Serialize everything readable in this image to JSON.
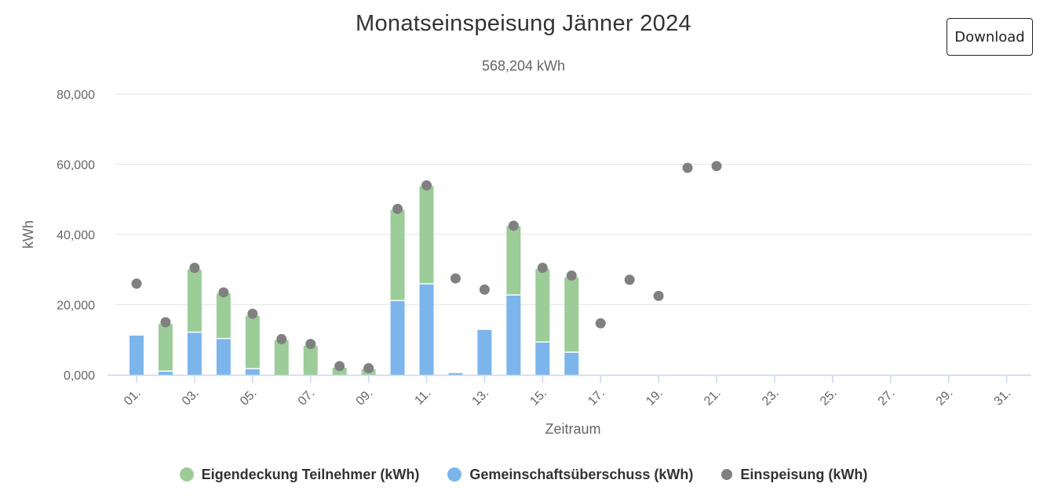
{
  "header": {
    "title": "Monatseinspeisung Jänner 2024",
    "subtitle": "568,204 kWh",
    "download_label": "Download"
  },
  "chart_data": {
    "type": "bar",
    "stacked": true,
    "title": "Monatseinspeisung Jänner 2024",
    "subtitle": "568,204 kWh",
    "xlabel": "Zeitraum",
    "ylabel": "kWh",
    "ylim": [
      0,
      80000
    ],
    "y_ticks": [
      0,
      20000,
      40000,
      60000,
      80000
    ],
    "y_tick_labels": [
      "0,000",
      "20,000",
      "40,000",
      "60,000",
      "80,000"
    ],
    "x": [
      1,
      2,
      3,
      4,
      5,
      6,
      7,
      8,
      9,
      10,
      11,
      12,
      13,
      14,
      15,
      16,
      17,
      18,
      19,
      20,
      21,
      22,
      23,
      24,
      25,
      26,
      27,
      28,
      29,
      30,
      31
    ],
    "x_tick_labels": [
      "01.",
      "03.",
      "05.",
      "07.",
      "09.",
      "11.",
      "13.",
      "15.",
      "17.",
      "19.",
      "21.",
      "23.",
      "25.",
      "27.",
      "29.",
      "31."
    ],
    "grid": true,
    "legend_position": "bottom",
    "series": [
      {
        "name": "Eigendeckung Teilnehmer (kWh)",
        "kind": "bar",
        "color": "#9ccd98",
        "values": [
          0,
          13600,
          18000,
          13000,
          15200,
          9900,
          8300,
          2000,
          1600,
          26000,
          28000,
          0,
          0,
          19800,
          21000,
          21500,
          null,
          null,
          null,
          null,
          null,
          null,
          null,
          null,
          null,
          null,
          null,
          null,
          null,
          null,
          null
        ]
      },
      {
        "name": "Gemeinschaftsüberschuss (kWh)",
        "kind": "bar",
        "color": "#7cb5ec",
        "values": [
          11200,
          900,
          12000,
          10200,
          1600,
          0,
          0,
          0,
          0,
          21000,
          25800,
          500,
          12800,
          22600,
          9200,
          6300,
          null,
          null,
          null,
          null,
          null,
          null,
          null,
          null,
          null,
          null,
          null,
          null,
          null,
          null,
          null
        ]
      },
      {
        "name": "Einspeisung (kWh)",
        "kind": "scatter",
        "color": "#808080",
        "values": [
          26000,
          15000,
          30500,
          23500,
          17400,
          10200,
          8800,
          2500,
          1900,
          47300,
          54000,
          27500,
          24300,
          42500,
          30500,
          28300,
          14700,
          27100,
          22500,
          59000,
          59500,
          null,
          null,
          null,
          null,
          null,
          null,
          null,
          null,
          null,
          null
        ]
      }
    ]
  }
}
